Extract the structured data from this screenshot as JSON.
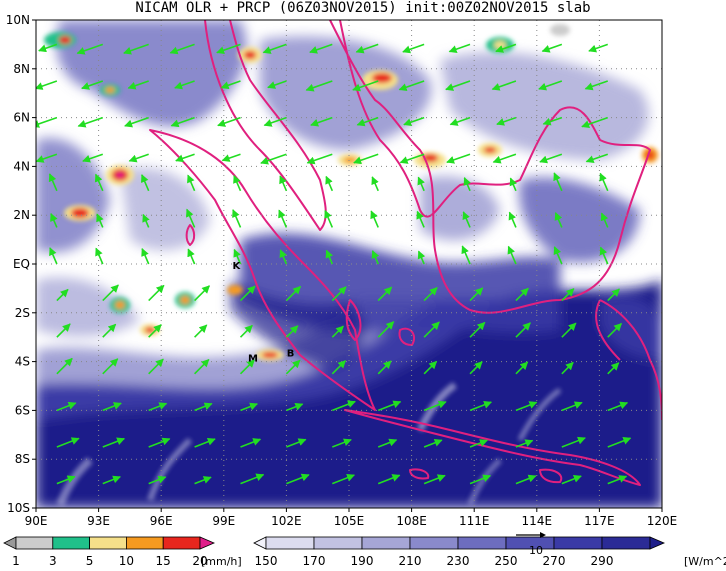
{
  "title": "NICAM OLR + PRCP (06Z03NOV2015) init:00Z02NOV2015 slab",
  "map": {
    "lon_labels": [
      "90E",
      "93E",
      "96E",
      "99E",
      "102E",
      "105E",
      "108E",
      "111E",
      "114E",
      "117E",
      "120E"
    ],
    "lat_labels": [
      "10N",
      "8N",
      "6N",
      "4N",
      "2N",
      "EQ",
      "2S",
      "4S",
      "6S",
      "8S",
      "10S"
    ],
    "place_markers": [
      {
        "label": "K",
        "lon": 99.6,
        "lat": -0.2
      },
      {
        "label": "M",
        "lon": 100.4,
        "lat": -4.0
      },
      {
        "label": "B",
        "lon": 102.2,
        "lat": -3.8
      }
    ],
    "colors": {
      "coastline": "#e0207f",
      "wind_vector": "#22dd22",
      "grid": "#888888"
    }
  },
  "prcp_legend": {
    "unit": "[mm/h]",
    "tick_labels": [
      "1",
      "3",
      "5",
      "10",
      "15",
      "20"
    ],
    "colors": [
      "#999999",
      "#cccccc",
      "#20c08a",
      "#f5e08a",
      "#f59a20",
      "#e8261e",
      "#e01e8a"
    ]
  },
  "olr_legend": {
    "unit": "[W/m^2]",
    "tick_labels": [
      "150",
      "170",
      "190",
      "210",
      "230",
      "250",
      "270",
      "290"
    ],
    "colors": [
      "#f2f2fa",
      "#dcdcef",
      "#c2c2e2",
      "#a6a6d6",
      "#8a8acb",
      "#6d6dbf",
      "#5050b2",
      "#3a3aa6",
      "#2b2b96",
      "#1e1e8a"
    ],
    "reference_vector_label": "10"
  }
}
